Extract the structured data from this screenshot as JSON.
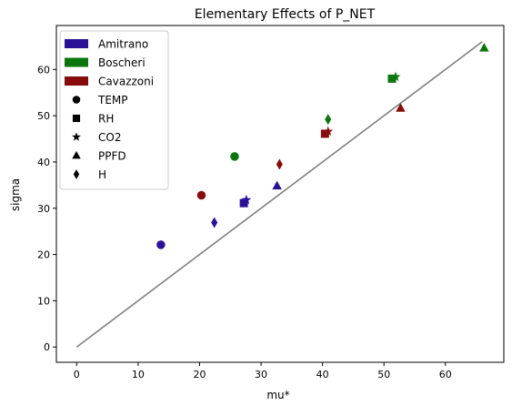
{
  "chart_data": {
    "type": "scatter",
    "title": "Elementary Effects of P_NET",
    "xlabel": "mu*",
    "ylabel": "sigma",
    "xlim": [
      -3.3,
      69.5
    ],
    "ylim": [
      -3.3,
      69.5
    ],
    "xticks": [
      0,
      10,
      20,
      30,
      40,
      50,
      60
    ],
    "yticks": [
      0,
      10,
      20,
      30,
      40,
      50,
      60
    ],
    "grid": false,
    "legend_position": "top-left",
    "reference_line": {
      "from": [
        0,
        0
      ],
      "to": [
        66,
        66
      ],
      "color": "#808080"
    },
    "groups": [
      {
        "name": "Amitrano",
        "color": "#2a1196"
      },
      {
        "name": "Boscheri",
        "color": "#0b760b"
      },
      {
        "name": "Cavazzoni",
        "color": "#860c0c"
      }
    ],
    "markers": [
      {
        "name": "TEMP",
        "shape": "circle"
      },
      {
        "name": "RH",
        "shape": "square"
      },
      {
        "name": "CO2",
        "shape": "star"
      },
      {
        "name": "PPFD",
        "shape": "triangle"
      },
      {
        "name": "H",
        "shape": "diamond"
      }
    ],
    "series": [
      {
        "group": "Amitrano",
        "points": [
          {
            "marker": "TEMP",
            "x": 13.7,
            "y": 22.1
          },
          {
            "marker": "RH",
            "x": 27.2,
            "y": 31.1
          },
          {
            "marker": "CO2",
            "x": 27.6,
            "y": 31.8
          },
          {
            "marker": "PPFD",
            "x": 32.6,
            "y": 34.8
          },
          {
            "marker": "H",
            "x": 22.4,
            "y": 26.9
          }
        ]
      },
      {
        "group": "Boscheri",
        "points": [
          {
            "marker": "TEMP",
            "x": 25.7,
            "y": 41.2
          },
          {
            "marker": "RH",
            "x": 51.3,
            "y": 58.0
          },
          {
            "marker": "CO2",
            "x": 51.9,
            "y": 58.4
          },
          {
            "marker": "PPFD",
            "x": 66.3,
            "y": 64.6
          },
          {
            "marker": "H",
            "x": 40.9,
            "y": 49.2
          }
        ]
      },
      {
        "group": "Cavazzoni",
        "points": [
          {
            "marker": "TEMP",
            "x": 20.3,
            "y": 32.8
          },
          {
            "marker": "RH",
            "x": 40.4,
            "y": 46.1
          },
          {
            "marker": "CO2",
            "x": 40.9,
            "y": 46.6
          },
          {
            "marker": "PPFD",
            "x": 52.7,
            "y": 51.6
          },
          {
            "marker": "H",
            "x": 33.0,
            "y": 39.5
          }
        ]
      }
    ]
  }
}
